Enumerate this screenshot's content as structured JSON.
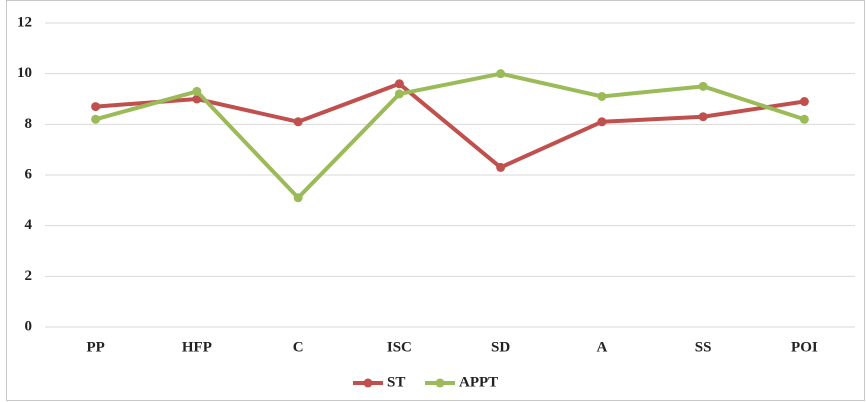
{
  "chart_data": {
    "type": "line",
    "categories": [
      "PP",
      "HFP",
      "C",
      "ISC",
      "SD",
      "A",
      "SS",
      "POI"
    ],
    "series": [
      {
        "name": "ST",
        "color": "#c0504d",
        "values": [
          8.7,
          9.0,
          8.1,
          9.6,
          6.3,
          8.1,
          8.3,
          8.9
        ]
      },
      {
        "name": "APPT",
        "color": "#9bbb59",
        "values": [
          8.2,
          9.3,
          5.1,
          9.2,
          10.0,
          9.1,
          9.5,
          8.2
        ]
      }
    ],
    "ylim": [
      0,
      12
    ],
    "yticks": [
      0,
      2,
      4,
      6,
      8,
      10,
      12
    ],
    "grid": true,
    "legend": "bottom"
  }
}
